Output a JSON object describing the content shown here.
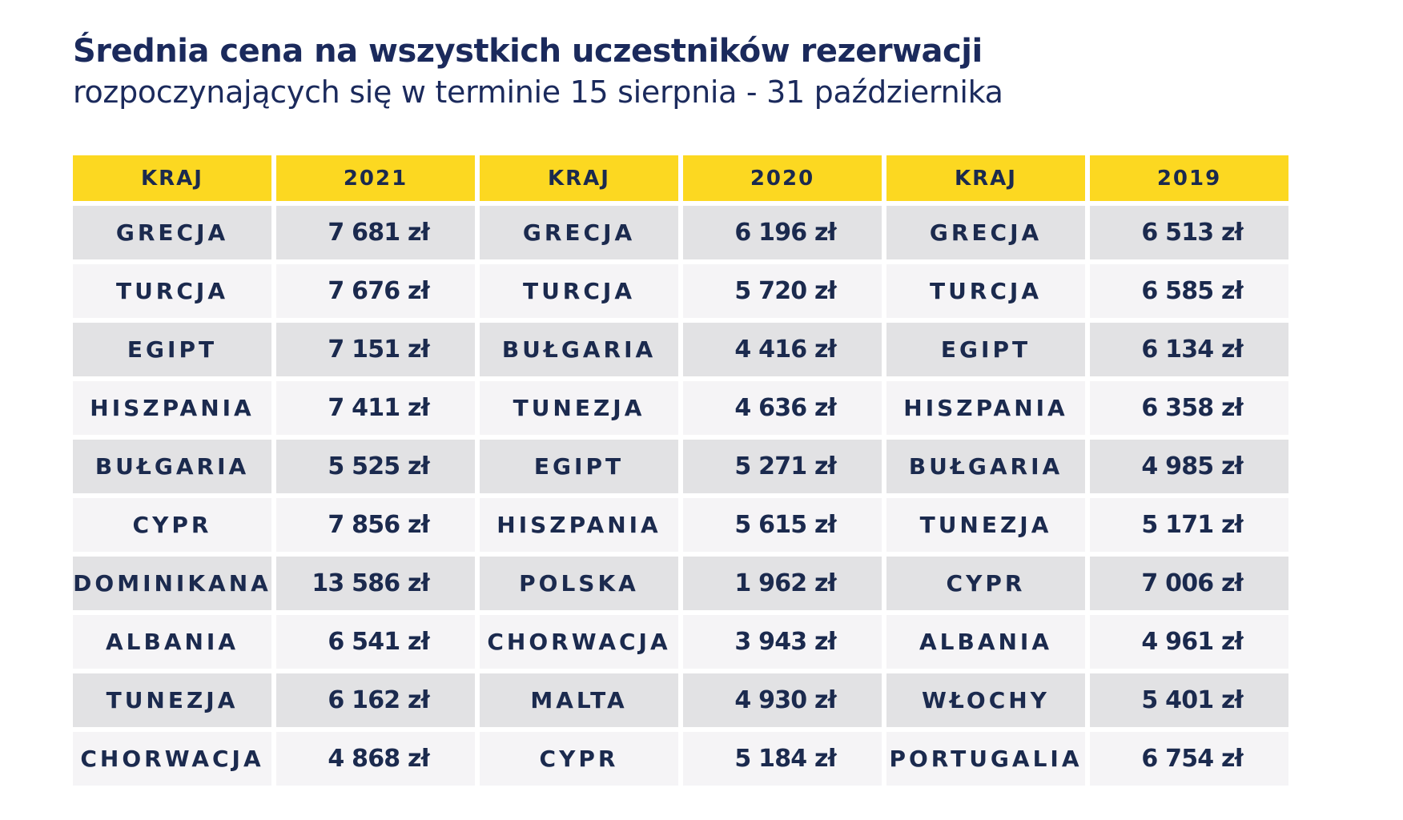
{
  "title": "Średnia cena na wszystkich uczestników rezerwacji",
  "subtitle": "rozpoczynających się w terminie 15 sierpnia - 31 października",
  "colors": {
    "header_bg": "#fcd821",
    "row_dark": "#e2e2e4",
    "row_light": "#f5f4f6",
    "text": "#1b2a4e"
  },
  "chart_data": {
    "type": "table",
    "title": "Średnia cena na wszystkich uczestników rezerwacji",
    "subtitle": "rozpoczynających się w terminie 15 sierpnia - 31 października",
    "columns": [
      "KRAJ",
      "2021",
      "KRAJ",
      "2020",
      "KRAJ",
      "2019"
    ],
    "rows": [
      [
        "GRECJA",
        "7 681 zł",
        "GRECJA",
        "6 196 zł",
        "GRECJA",
        "6 513 zł"
      ],
      [
        "TURCJA",
        "7 676 zł",
        "TURCJA",
        "5 720 zł",
        "TURCJA",
        "6 585 zł"
      ],
      [
        "EGIPT",
        "7 151 zł",
        "BUŁGARIA",
        "4 416 zł",
        "EGIPT",
        "6 134 zł"
      ],
      [
        "HISZPANIA",
        "7 411 zł",
        "TUNEZJA",
        "4 636 zł",
        "HISZPANIA",
        "6 358 zł"
      ],
      [
        "BUŁGARIA",
        "5 525 zł",
        "EGIPT",
        "5 271 zł",
        "BUŁGARIA",
        "4 985 zł"
      ],
      [
        "CYPR",
        "7 856 zł",
        "HISZPANIA",
        "5 615 zł",
        "TUNEZJA",
        "5 171 zł"
      ],
      [
        "DOMINIKANA",
        "13 586 zł",
        "POLSKA",
        "1 962 zł",
        "CYPR",
        "7 006 zł"
      ],
      [
        "ALBANIA",
        "6 541 zł",
        "CHORWACJA",
        "3 943 zł",
        "ALBANIA",
        "4 961 zł"
      ],
      [
        "TUNEZJA",
        "6 162 zł",
        "MALTA",
        "4 930 zł",
        "WŁOCHY",
        "5 401 zł"
      ],
      [
        "CHORWACJA",
        "4 868 zł",
        "CYPR",
        "5 184 zł",
        "PORTUGALIA",
        "6 754 zł"
      ]
    ]
  }
}
